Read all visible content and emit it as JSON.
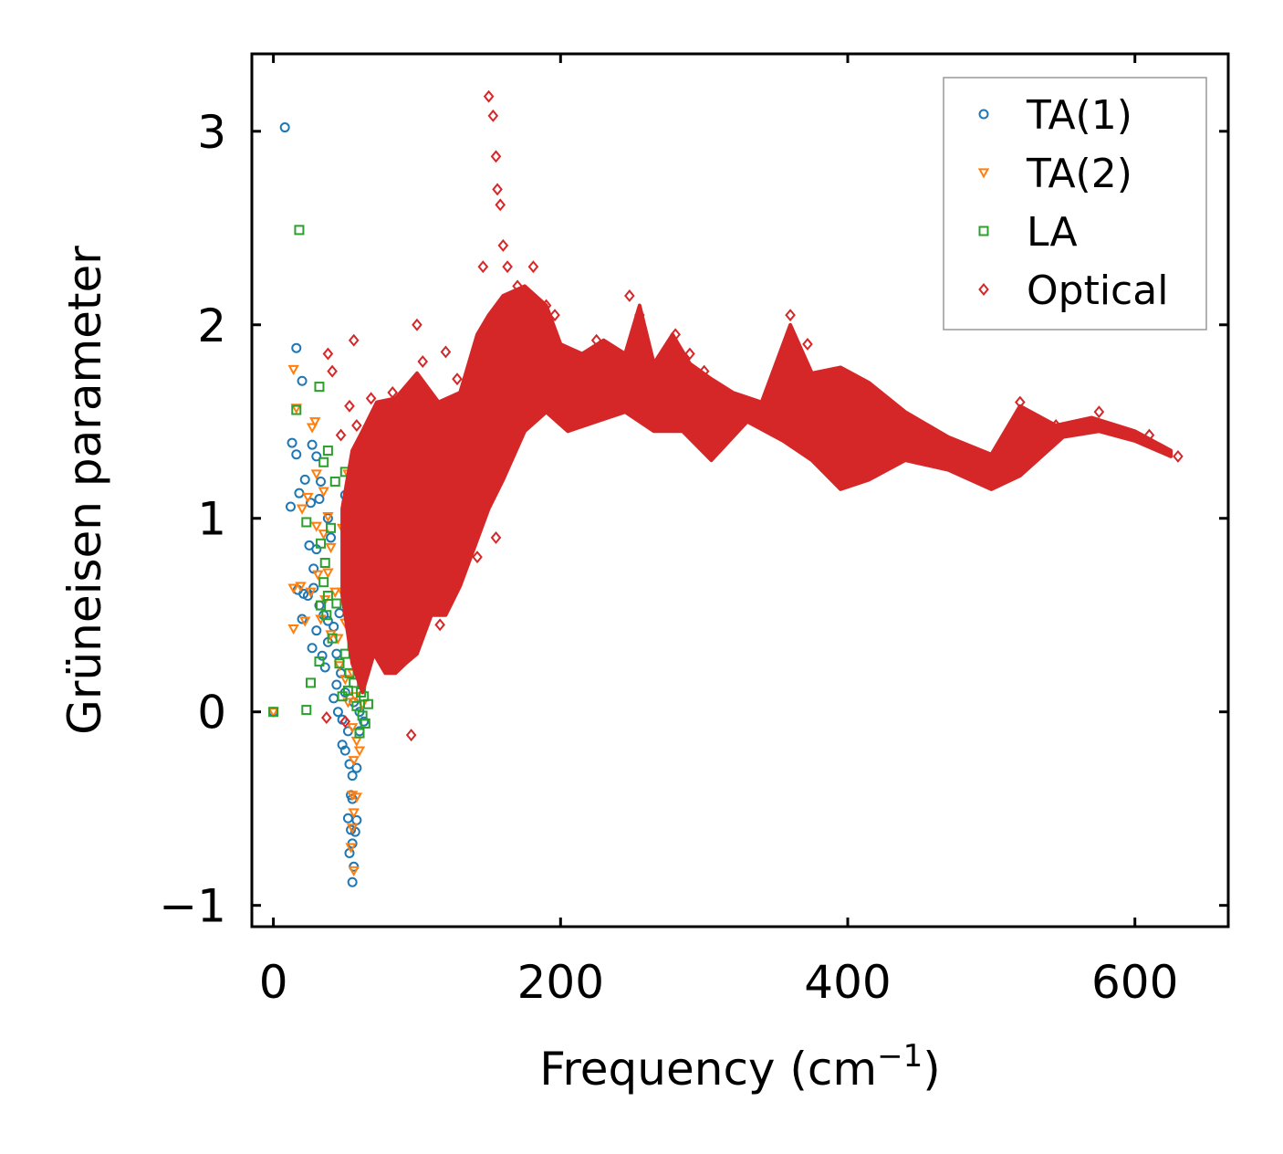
{
  "chart_data": {
    "type": "scatter",
    "title": "",
    "xlabel": "Frequency (cm",
    "xlabel_sup": "−1",
    "xlabel_end": ")",
    "ylabel": "Grüneisen parameter",
    "xlim": [
      -15,
      665
    ],
    "ylim": [
      -1.11,
      3.4
    ],
    "xticks": [
      0,
      200,
      400,
      600
    ],
    "xtick_labels": [
      "0",
      "200",
      "400",
      "600"
    ],
    "yticks": [
      -1,
      0,
      1,
      2,
      3
    ],
    "ytick_labels": [
      "−1",
      "0",
      "1",
      "2",
      "3"
    ],
    "legend_position": "top-right",
    "series": [
      {
        "name": "TA(1)",
        "marker": "circle",
        "color": "#1f77b4",
        "points": [
          [
            8,
            3.02
          ],
          [
            0,
            0.0
          ],
          [
            16,
            1.88
          ],
          [
            20,
            1.71
          ],
          [
            13,
            1.39
          ],
          [
            16,
            1.33
          ],
          [
            22,
            1.2
          ],
          [
            12,
            1.06
          ],
          [
            26,
            1.08
          ],
          [
            30,
            1.32
          ],
          [
            27,
            1.38
          ],
          [
            33,
            1.19
          ],
          [
            32,
            1.1
          ],
          [
            18,
            1.13
          ],
          [
            25,
            0.86
          ],
          [
            28,
            0.74
          ],
          [
            30,
            0.84
          ],
          [
            38,
            1.0
          ],
          [
            17,
            0.63
          ],
          [
            21,
            0.61
          ],
          [
            24,
            0.6
          ],
          [
            28,
            0.64
          ],
          [
            32,
            0.55
          ],
          [
            35,
            0.5
          ],
          [
            38,
            0.47
          ],
          [
            42,
            0.44
          ],
          [
            20,
            0.48
          ],
          [
            27,
            0.33
          ],
          [
            30,
            0.42
          ],
          [
            34,
            0.29
          ],
          [
            38,
            0.36
          ],
          [
            44,
            0.3
          ],
          [
            47,
            0.2
          ],
          [
            50,
            0.1
          ],
          [
            42,
            0.07
          ],
          [
            45,
            0.0
          ],
          [
            48,
            -0.04
          ],
          [
            52,
            -0.1
          ],
          [
            50,
            -0.2
          ],
          [
            53,
            -0.27
          ],
          [
            55,
            -0.33
          ],
          [
            58,
            -0.29
          ],
          [
            55,
            -0.45
          ],
          [
            52,
            -0.55
          ],
          [
            54,
            -0.61
          ],
          [
            53,
            -0.73
          ],
          [
            55,
            -0.68
          ],
          [
            56,
            -0.8
          ],
          [
            55,
            -0.88
          ],
          [
            58,
            -0.56
          ],
          [
            60,
            0.0
          ],
          [
            63,
            -0.05
          ],
          [
            52,
            0.72
          ],
          [
            50,
            1.12
          ],
          [
            46,
            0.51
          ],
          [
            40,
            0.9
          ],
          [
            36,
            0.23
          ],
          [
            44,
            0.14
          ],
          [
            56,
            0.05
          ],
          [
            60,
            -0.1
          ],
          [
            48,
            -0.17
          ],
          [
            57,
            -0.62
          ],
          [
            54,
            -0.43
          ]
        ]
      },
      {
        "name": "TA(2)",
        "marker": "triangle-down",
        "color": "#ff7f0e",
        "points": [
          [
            0,
            0.0
          ],
          [
            14,
            1.77
          ],
          [
            16,
            1.57
          ],
          [
            27,
            1.47
          ],
          [
            29,
            1.5
          ],
          [
            30,
            1.23
          ],
          [
            24,
            1.11
          ],
          [
            20,
            1.05
          ],
          [
            35,
            1.14
          ],
          [
            38,
            1.01
          ],
          [
            30,
            0.96
          ],
          [
            35,
            0.92
          ],
          [
            14,
            0.64
          ],
          [
            19,
            0.65
          ],
          [
            26,
            0.62
          ],
          [
            31,
            0.71
          ],
          [
            38,
            0.72
          ],
          [
            43,
            0.62
          ],
          [
            14,
            0.43
          ],
          [
            22,
            0.47
          ],
          [
            33,
            0.48
          ],
          [
            40,
            0.4
          ],
          [
            48,
            0.62
          ],
          [
            52,
            0.65
          ],
          [
            58,
            0.74
          ],
          [
            55,
            0.5
          ],
          [
            50,
            0.46
          ],
          [
            45,
            0.38
          ],
          [
            46,
            0.24
          ],
          [
            50,
            0.17
          ],
          [
            55,
            0.2
          ],
          [
            60,
            0.18
          ],
          [
            57,
            0.08
          ],
          [
            62,
            0.04
          ],
          [
            52,
            0.05
          ],
          [
            55,
            -0.08
          ],
          [
            58,
            -0.15
          ],
          [
            60,
            -0.2
          ],
          [
            56,
            -0.25
          ],
          [
            55,
            -0.43
          ],
          [
            58,
            -0.44
          ],
          [
            56,
            -0.52
          ],
          [
            55,
            -0.6
          ],
          [
            54,
            -0.7
          ],
          [
            56,
            -0.82
          ],
          [
            52,
            1.23
          ],
          [
            48,
            0.95
          ],
          [
            40,
            0.85
          ],
          [
            36,
            0.58
          ]
        ]
      },
      {
        "name": "LA",
        "marker": "square",
        "color": "#2ca02c",
        "points": [
          [
            0,
            0.0
          ],
          [
            18,
            2.49
          ],
          [
            16,
            1.56
          ],
          [
            32,
            1.68
          ],
          [
            35,
            1.29
          ],
          [
            38,
            1.35
          ],
          [
            43,
            1.19
          ],
          [
            50,
            1.24
          ],
          [
            23,
            0.98
          ],
          [
            33,
            0.87
          ],
          [
            36,
            0.77
          ],
          [
            40,
            0.95
          ],
          [
            35,
            0.67
          ],
          [
            38,
            0.6
          ],
          [
            44,
            0.56
          ],
          [
            37,
            0.5
          ],
          [
            41,
            0.38
          ],
          [
            33,
            0.55
          ],
          [
            26,
            0.15
          ],
          [
            23,
            0.01
          ],
          [
            32,
            0.26
          ],
          [
            46,
            0.25
          ],
          [
            50,
            0.3
          ],
          [
            55,
            0.34
          ],
          [
            58,
            0.4
          ],
          [
            60,
            0.28
          ],
          [
            53,
            0.2
          ],
          [
            56,
            0.15
          ],
          [
            61,
            0.1
          ],
          [
            58,
            0.03
          ],
          [
            62,
            -0.02
          ],
          [
            64,
            -0.06
          ],
          [
            60,
            -0.11
          ],
          [
            63,
            0.08
          ],
          [
            52,
            0.11
          ],
          [
            48,
            0.08
          ],
          [
            66,
            0.04
          ]
        ]
      },
      {
        "name": "Optical",
        "marker": "diamond",
        "color": "#d62728",
        "points": [
          [
            38,
            1.85
          ],
          [
            41,
            1.76
          ],
          [
            47,
            1.43
          ],
          [
            56,
            1.92
          ],
          [
            53,
            1.58
          ],
          [
            58,
            1.48
          ],
          [
            68,
            1.62
          ],
          [
            83,
            1.65
          ],
          [
            100,
            2.0
          ],
          [
            104,
            1.81
          ],
          [
            120,
            1.86
          ],
          [
            128,
            1.72
          ],
          [
            146,
            2.3
          ],
          [
            150,
            3.18
          ],
          [
            153,
            3.08
          ],
          [
            155,
            2.87
          ],
          [
            156,
            2.7
          ],
          [
            158,
            2.62
          ],
          [
            160,
            2.41
          ],
          [
            163,
            2.3
          ],
          [
            170,
            2.2
          ],
          [
            181,
            2.3
          ],
          [
            190,
            2.1
          ],
          [
            196,
            2.05
          ],
          [
            225,
            1.92
          ],
          [
            248,
            2.15
          ],
          [
            255,
            2.05
          ],
          [
            280,
            1.95
          ],
          [
            290,
            1.85
          ],
          [
            300,
            1.76
          ],
          [
            360,
            2.05
          ],
          [
            372,
            1.9
          ],
          [
            388,
            1.72
          ],
          [
            400,
            1.68
          ],
          [
            420,
            1.5
          ],
          [
            450,
            1.42
          ],
          [
            480,
            1.34
          ],
          [
            520,
            1.6
          ],
          [
            545,
            1.48
          ],
          [
            575,
            1.55
          ],
          [
            610,
            1.43
          ],
          [
            630,
            1.32
          ],
          [
            37,
            -0.03
          ],
          [
            50,
            -0.05
          ],
          [
            58,
            0.28
          ],
          [
            63,
            0.6
          ],
          [
            70,
            0.98
          ],
          [
            80,
            1.08
          ],
          [
            92,
            0.28
          ],
          [
            96,
            -0.12
          ],
          [
            103,
            0.55
          ],
          [
            116,
            0.45
          ],
          [
            133,
            0.85
          ],
          [
            142,
            0.8
          ],
          [
            155,
            0.9
          ]
        ]
      }
    ]
  }
}
